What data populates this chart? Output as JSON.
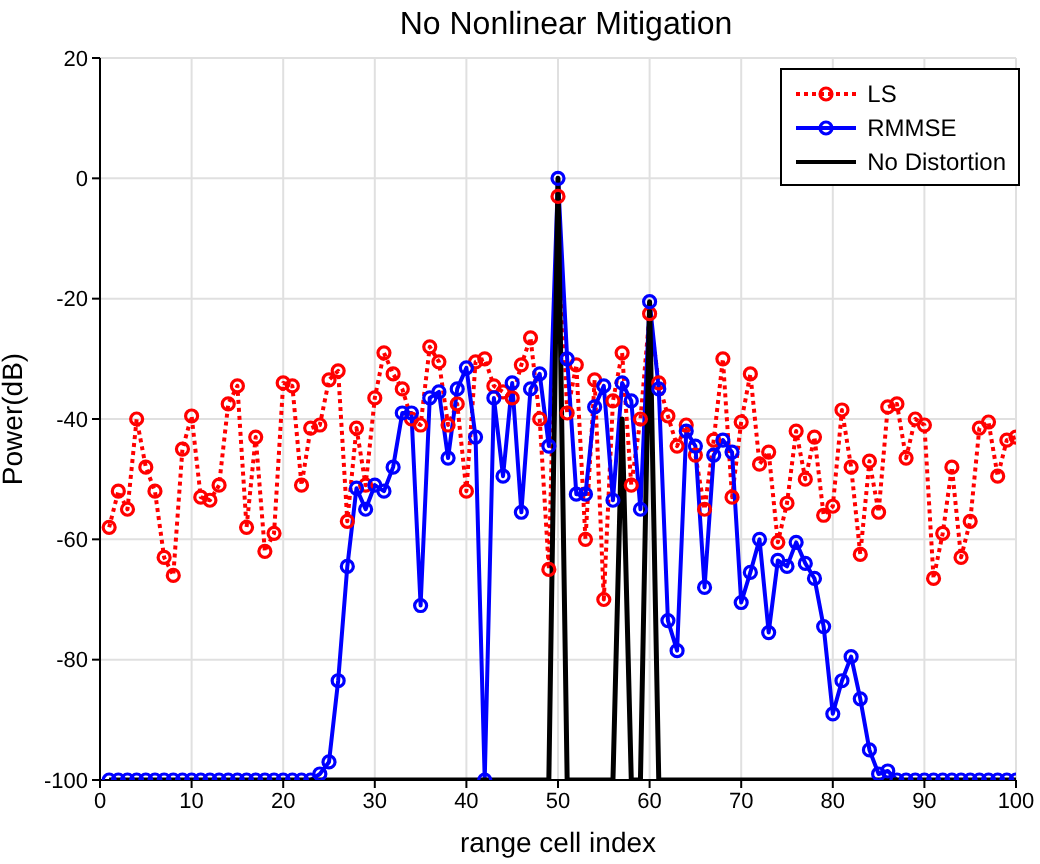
{
  "chart_data": {
    "type": "line",
    "title": "No Nonlinear Mitigation",
    "xlabel": "range cell index",
    "ylabel": "Power(dB)",
    "x": [
      1,
      2,
      3,
      4,
      5,
      6,
      7,
      8,
      9,
      10,
      11,
      12,
      13,
      14,
      15,
      16,
      17,
      18,
      19,
      20,
      21,
      22,
      23,
      24,
      25,
      26,
      27,
      28,
      29,
      30,
      31,
      32,
      33,
      34,
      35,
      36,
      37,
      38,
      39,
      40,
      41,
      42,
      43,
      44,
      45,
      46,
      47,
      48,
      49,
      50,
      51,
      52,
      53,
      54,
      55,
      56,
      57,
      58,
      59,
      60,
      61,
      62,
      63,
      64,
      65,
      66,
      67,
      68,
      69,
      70,
      71,
      72,
      73,
      74,
      75,
      76,
      77,
      78,
      79,
      80,
      81,
      82,
      83,
      84,
      85,
      86,
      87,
      88,
      89,
      90,
      91,
      92,
      93,
      94,
      95,
      96,
      97,
      98,
      99,
      100
    ],
    "series": [
      {
        "name": "LS",
        "color": "#ff0000",
        "marker": "circle",
        "line_style": "dotted",
        "values": [
          -58,
          -52,
          -55,
          -40,
          -48,
          -52,
          -63,
          -66,
          -45,
          -39.5,
          -53,
          -53.5,
          -51,
          -37.5,
          -34.5,
          -58,
          -43,
          -62,
          -59,
          -34,
          -34.5,
          -51,
          -41.5,
          -41,
          -33.5,
          -32,
          -57,
          -41.5,
          -51,
          -36.5,
          -29,
          -32.5,
          -35,
          -40,
          -41,
          -28,
          -30.5,
          -41,
          -37.5,
          -52,
          -30.5,
          -30,
          -34.5,
          -35.5,
          -36.5,
          -31,
          -26.5,
          -40,
          -65,
          -3,
          -39,
          -31,
          -60,
          -33.5,
          -70,
          -37,
          -29,
          -51,
          -40,
          -22.5,
          -34,
          -39.5,
          -44.5,
          -41,
          -46,
          -55,
          -43.5,
          -30,
          -53,
          -40.5,
          -32.5,
          -47.5,
          -45.5,
          -60.5,
          -54,
          -42,
          -50,
          -43,
          -56,
          -54.5,
          -38.5,
          -48,
          -62.5,
          -47,
          -55.5,
          -38,
          -37.5,
          -46.5,
          -40,
          -41,
          -66.5,
          -59,
          -48,
          -63,
          -57,
          -41.5,
          -40.5,
          -49.5,
          -43.5,
          -43
        ]
      },
      {
        "name": "RMMSE",
        "color": "#0000ff",
        "marker": "circle",
        "line_style": "solid",
        "values": [
          -100,
          -100,
          -100,
          -100,
          -100,
          -100,
          -100,
          -100,
          -100,
          -100,
          -100,
          -100,
          -100,
          -100,
          -100,
          -100,
          -100,
          -100,
          -100,
          -100,
          -100,
          -100,
          -100,
          -99,
          -97,
          -83.5,
          -64.5,
          -51.5,
          -55,
          -51,
          -52,
          -48,
          -39,
          -39,
          -71,
          -36.5,
          -35.5,
          -46.5,
          -35,
          -31.5,
          -43,
          -100,
          -36.5,
          -49.5,
          -34,
          -55.5,
          -35,
          -32.5,
          -44.5,
          0,
          -30,
          -52.5,
          -52.5,
          -38,
          -34.5,
          -53.5,
          -34,
          -37,
          -55,
          -20.5,
          -35,
          -73.5,
          -78.5,
          -42,
          -44.5,
          -68,
          -46,
          -43.5,
          -45.5,
          -70.5,
          -65.5,
          -60,
          -75.5,
          -63.5,
          -64.5,
          -60.5,
          -64,
          -66.5,
          -74.5,
          -89,
          -83.5,
          -79.5,
          -86.5,
          -95,
          -99,
          -98.5,
          -100,
          -100,
          -100,
          -100,
          -100,
          -100,
          -100,
          -100,
          -100,
          -100,
          -100,
          -100,
          -100,
          -100
        ]
      },
      {
        "name": "No Distortion",
        "color": "#000000",
        "marker": "none",
        "line_style": "solid",
        "values": [
          -100,
          -100,
          -100,
          -100,
          -100,
          -100,
          -100,
          -100,
          -100,
          -100,
          -100,
          -100,
          -100,
          -100,
          -100,
          -100,
          -100,
          -100,
          -100,
          -100,
          -100,
          -100,
          -100,
          -100,
          -100,
          -100,
          -100,
          -100,
          -100,
          -100,
          -100,
          -100,
          -100,
          -100,
          -100,
          -100,
          -100,
          -100,
          -100,
          -100,
          -100,
          -100,
          -100,
          -100,
          -100,
          -100,
          -100,
          -100,
          -100,
          0,
          -100,
          -100,
          -100,
          -100,
          -100,
          -100,
          -40,
          -100,
          -100,
          -20.5,
          -100,
          -100,
          -100,
          -100,
          -100,
          -100,
          -100,
          -100,
          -100,
          -100,
          -100,
          -100,
          -100,
          -100,
          -100,
          -100,
          -100,
          -100,
          -100,
          -100,
          -100,
          -100,
          -100,
          -100,
          -100,
          -100,
          -100,
          -100,
          -100,
          -100,
          -100,
          -100,
          -100,
          -100,
          -100,
          -100,
          -100,
          -100,
          -100,
          -100
        ]
      }
    ],
    "xlim": [
      0,
      100
    ],
    "xticks": [
      0,
      10,
      20,
      30,
      40,
      50,
      60,
      70,
      80,
      90,
      100
    ],
    "ylim": [
      -100,
      20
    ],
    "yticks": [
      -100,
      -80,
      -60,
      -40,
      -20,
      0,
      20
    ],
    "grid": true,
    "legend": "top right"
  }
}
